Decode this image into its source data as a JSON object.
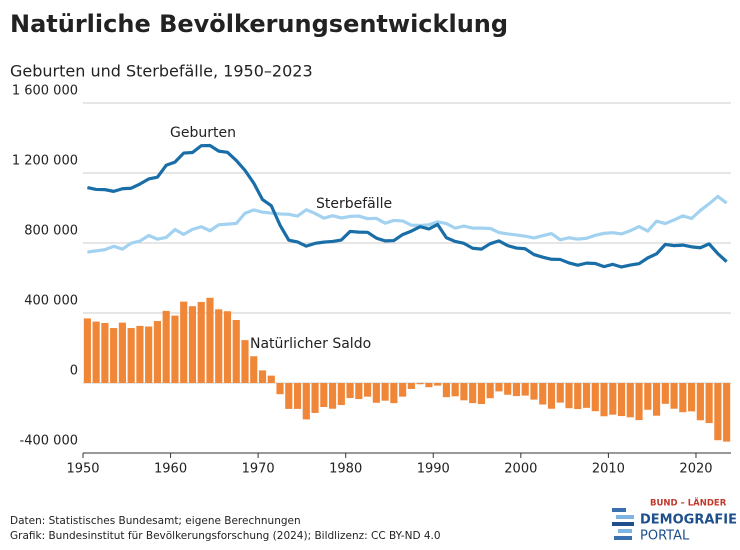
{
  "chart_data": {
    "type": "line-bar",
    "title": "Natürliche Bevölkerungsentwicklung",
    "subtitle": "Geburten und Sterbefälle, 1950–2023",
    "x": [
      1950,
      1951,
      1952,
      1953,
      1954,
      1955,
      1956,
      1957,
      1958,
      1959,
      1960,
      1961,
      1962,
      1963,
      1964,
      1965,
      1966,
      1967,
      1968,
      1969,
      1970,
      1971,
      1972,
      1973,
      1974,
      1975,
      1976,
      1977,
      1978,
      1979,
      1980,
      1981,
      1982,
      1983,
      1984,
      1985,
      1986,
      1987,
      1988,
      1989,
      1990,
      1991,
      1992,
      1993,
      1994,
      1995,
      1996,
      1997,
      1998,
      1999,
      2000,
      2001,
      2002,
      2003,
      2004,
      2005,
      2006,
      2007,
      2008,
      2009,
      2010,
      2011,
      2012,
      2013,
      2014,
      2015,
      2016,
      2017,
      2018,
      2019,
      2020,
      2021,
      2022,
      2023
    ],
    "series": [
      {
        "name": "Geburten",
        "kind": "line",
        "color": "#1a6ea8",
        "values": [
          1117000,
          1106000,
          1105000,
          1095000,
          1110000,
          1113000,
          1137000,
          1166000,
          1176000,
          1244000,
          1262000,
          1314000,
          1317000,
          1356000,
          1357000,
          1325000,
          1318000,
          1272000,
          1215000,
          1142000,
          1048000,
          1013000,
          902000,
          816000,
          806000,
          782000,
          798000,
          805000,
          809000,
          817000,
          866000,
          862000,
          861000,
          828000,
          812000,
          814000,
          848000,
          868000,
          893000,
          880000,
          906000,
          830000,
          809000,
          798000,
          770000,
          765000,
          796000,
          812000,
          785000,
          771000,
          767000,
          734000,
          719000,
          707000,
          706000,
          686000,
          673000,
          685000,
          683000,
          665000,
          678000,
          663000,
          674000,
          682000,
          715000,
          738000,
          792000,
          785000,
          788000,
          778000,
          773000,
          795000,
          739000,
          693000
        ]
      },
      {
        "name": "Sterbefälle",
        "kind": "line",
        "color": "#a3d2f0",
        "values": [
          748000,
          755000,
          762000,
          781000,
          765000,
          799000,
          811000,
          843000,
          822000,
          832000,
          877000,
          849000,
          878000,
          893000,
          870000,
          904000,
          908000,
          912000,
          970000,
          989000,
          976000,
          971000,
          966000,
          964000,
          954000,
          990000,
          969000,
          942000,
          956000,
          943000,
          952000,
          954000,
          939000,
          941000,
          913000,
          929000,
          926000,
          902000,
          900000,
          904000,
          921000,
          911000,
          885000,
          897000,
          885000,
          885000,
          883000,
          860000,
          852000,
          846000,
          839000,
          829000,
          842000,
          854000,
          818000,
          830000,
          822000,
          827000,
          844000,
          855000,
          859000,
          852000,
          870000,
          894000,
          868000,
          925000,
          911000,
          932000,
          955000,
          940000,
          986000,
          1024000,
          1066000,
          1028000
        ]
      },
      {
        "name": "Natürlicher Saldo",
        "kind": "bar",
        "color": "#f08637",
        "values": [
          369000,
          351000,
          343000,
          314000,
          345000,
          314000,
          326000,
          323000,
          354000,
          412000,
          385000,
          465000,
          439000,
          463000,
          487000,
          421000,
          410000,
          360000,
          245000,
          153000,
          72000,
          42000,
          -64000,
          -148000,
          -148000,
          -208000,
          -171000,
          -137000,
          -147000,
          -126000,
          -86000,
          -92000,
          -78000,
          -113000,
          -101000,
          -115000,
          -78000,
          -34000,
          -7000,
          -24000,
          -15000,
          -81000,
          -76000,
          -99000,
          -115000,
          -120000,
          -87000,
          -48000,
          -67000,
          -75000,
          -72000,
          -95000,
          -123000,
          -147000,
          -112000,
          -144000,
          -149000,
          -142000,
          -161000,
          -190000,
          -181000,
          -189000,
          -196000,
          -212000,
          -153000,
          -187000,
          -119000,
          -147000,
          -167000,
          -162000,
          -213000,
          -229000,
          -327000,
          -335000
        ]
      }
    ],
    "xlim": [
      1950,
      2024
    ],
    "xticks": [
      1950,
      1960,
      1970,
      1980,
      1990,
      2000,
      2010,
      2020
    ],
    "ylim": [
      -400000,
      1600000
    ],
    "yticks": [
      {
        "value": -400000,
        "label": "-400 000"
      },
      0,
      {
        "value": 400000,
        "label": "400 000"
      },
      {
        "value": 800000,
        "label": "800 000"
      },
      {
        "value": 1200000,
        "label": "1 200 000"
      },
      {
        "value": 1600000,
        "label": "1 600 000"
      }
    ],
    "grid": true,
    "source": "Daten: Statistisches Bundesamt; eigene Berechnungen",
    "credit": "Grafik: Bundesinstitut für Bevölkerungsforschung (2024); Bildlizenz: CC BY-ND 4.0"
  },
  "logo": {
    "top": "BUND – LÄNDER",
    "line1": "DEMOGRAFIE",
    "line2": "PORTAL"
  }
}
